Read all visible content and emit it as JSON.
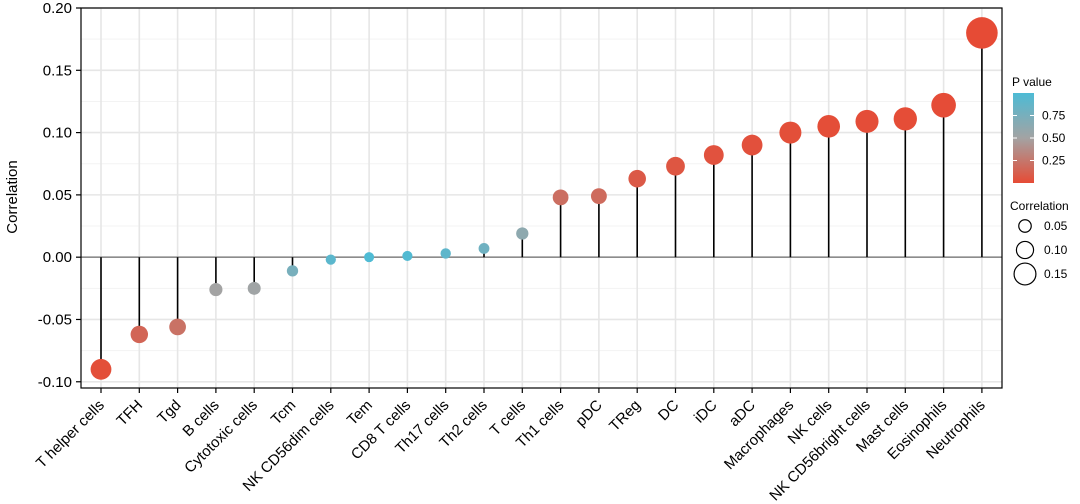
{
  "chart_data": {
    "type": "lollipop",
    "title": "",
    "xlabel": "",
    "ylabel": "Correlation",
    "ylim": [
      -0.105,
      0.2
    ],
    "yticks": [
      -0.1,
      -0.05,
      0.0,
      0.05,
      0.1,
      0.15,
      0.2
    ],
    "ytick_labels": [
      "-0.10",
      "-0.05",
      "0.00",
      "0.05",
      "0.10",
      "0.15",
      "0.20"
    ],
    "grid": true,
    "categories": [
      "T helper cells",
      "TFH",
      "Tgd",
      "B cells",
      "Cytotoxic cells",
      "Tcm",
      "NK CD56dim cells",
      "Tem",
      "CD8 T cells",
      "Th17 cells",
      "Th2 cells",
      "T cells",
      "Th1 cells",
      "pDC",
      "TReg",
      "DC",
      "iDC",
      "aDC",
      "Macrophages",
      "NK cells",
      "NK CD56bright cells",
      "Mast cells",
      "Eosinophils",
      "Neutrophils"
    ],
    "values": [
      -0.09,
      -0.062,
      -0.056,
      -0.026,
      -0.025,
      -0.011,
      -0.002,
      0.0,
      0.001,
      0.003,
      0.007,
      0.019,
      0.048,
      0.049,
      0.063,
      0.073,
      0.082,
      0.09,
      0.1,
      0.105,
      0.109,
      0.111,
      0.122,
      0.18
    ],
    "p_values": [
      0.02,
      0.15,
      0.22,
      0.5,
      0.52,
      0.75,
      0.92,
      0.99,
      0.97,
      0.9,
      0.8,
      0.62,
      0.2,
      0.18,
      0.08,
      0.06,
      0.04,
      0.03,
      0.02,
      0.015,
      0.012,
      0.01,
      0.008,
      0.001
    ],
    "legend": {
      "placement": "right",
      "color_title": "P value",
      "color_ticks": [
        "0.75",
        "0.50",
        "0.25"
      ],
      "color_range": [
        0.0,
        1.0
      ],
      "color_high": "#4dbbd5",
      "color_mid": "#a3a3a3",
      "color_low": "#e64b35",
      "size_title": "Correlation",
      "size_ticks": [
        "0.05",
        "0.10",
        "0.15"
      ]
    }
  }
}
